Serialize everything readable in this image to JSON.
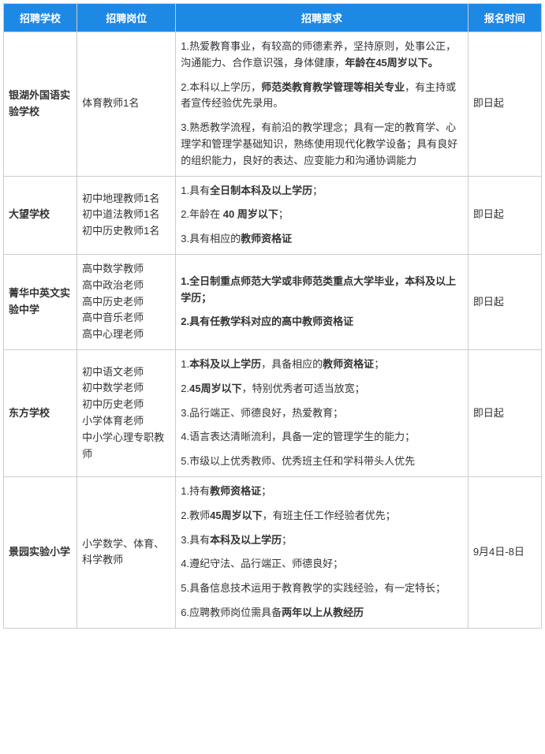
{
  "header": {
    "school": "招聘学校",
    "position": "招聘岗位",
    "requirement": "招聘要求",
    "time": "报名时间"
  },
  "rows": [
    {
      "school": "银湖外国语实验学校",
      "position": "体育教师1名",
      "time": "即日起",
      "req_html": "<p class='req-item'>1.热爱教育事业，有较高的师德素养，坚持原则，处事公正，沟通能力、合作意识强，身体健康，<span class='bold'>年龄在45周岁以下。</span></p><p class='req-item'>2.本科以上学历，<span class='bold'>师范类教育教学管理等相关专业</span>，有主持或者宣传经验优先录用。</p><p class='req-item'>3.熟悉教学流程，有前沿的教学理念；具有一定的教育学、心理学和管理学基础知识，熟练使用现代化教学设备；具有良好的组织能力，良好的表达、应变能力和沟通协调能力</p>"
    },
    {
      "school": "大望学校",
      "position": "初中地理教师1名\n初中道法教师1名\n初中历史教师1名",
      "time": "即日起",
      "req_html": "<p class='req-item'>1.具有<span class='bold'>全日制本科及以上学历</span>；</p><p class='req-item'>2.年龄在 <span class='bold'>40 周岁以下</span>；</p><p class='req-item'>3.具有相应的<span class='bold'>教师资格证</span></p>"
    },
    {
      "school": "菁华中英文实验中学",
      "position": "高中数学教师\n高中政治老师\n高中历史老师\n高中音乐老师\n高中心理老师",
      "time": "即日起",
      "req_html": "<p class='req-item'><span class='bold'>1.全日制重点师范大学或非师范类重点大学毕业，本科及以上学历；</span></p><p class='req-item'><span class='bold'>2.具有任教学科对应的高中教师资格证</span></p>"
    },
    {
      "school": "东方学校",
      "position": "初中语文老师\n初中数学老师\n初中历史老师\n小学体育老师\n中小学心理专职教师",
      "time": "即日起",
      "req_html": "<p class='req-item'>1.<span class='bold'>本科及以上学历</span>，具备相应的<span class='bold'>教师资格证</span>；</p><p class='req-item'>2.<span class='bold'>45周岁以下</span>，特别优秀者可适当放宽；</p><p class='req-item'>3.品行端正、师德良好，热爱教育；</p><p class='req-item'>4.语言表达清晰流利，具备一定的管理学生的能力；</p><p class='req-item'>5.市级以上优秀教师、优秀班主任和学科带头人优先</p>"
    },
    {
      "school": "景园实验小学",
      "position": "小学数学、体育、科学教师",
      "time": "9月4日-8日",
      "req_html": "<p class='req-item'>1.持有<span class='bold'>教师资格证</span>；</p><p class='req-item'>2.教师<span class='bold'>45周岁以下</span>，有班主任工作经验者优先；</p><p class='req-item'>3.具有<span class='bold'>本科及以上学历</span>；</p><p class='req-item'>4.遵纪守法、品行端正、师德良好；</p><p class='req-item'>5.具备信息技术运用于教育教学的实践经验，有一定特长；</p><p class='req-item'>6.应聘教师岗位需具备<span class='bold'>两年以上从教经历</span></p>"
    }
  ],
  "colors": {
    "header_bg": "#1e88e5",
    "header_text": "#ffffff",
    "border": "#cccccc",
    "cell_text": "#333333"
  }
}
